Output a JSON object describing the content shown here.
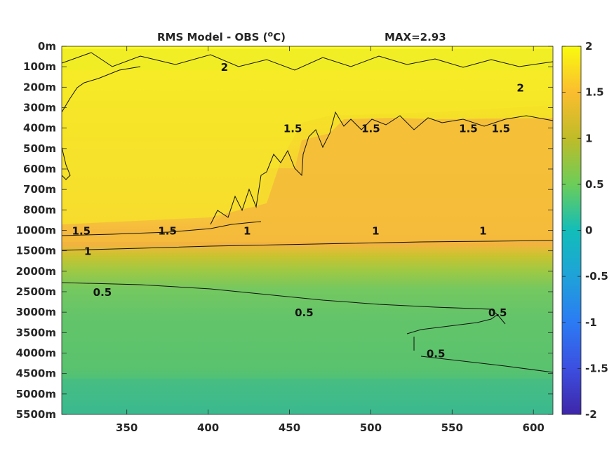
{
  "chart_data": {
    "type": "heatmap",
    "title": "RMS Model - OBS (°C)",
    "title_parts": {
      "left": "RMS Model - OBS (",
      "sup": "o",
      "right": "C)",
      "max_label": "MAX=2.93"
    },
    "colormap": "parula",
    "colorbar": {
      "range": [
        -2,
        2
      ],
      "ticks": [
        "2",
        "1.5",
        "1",
        "0.5",
        "0",
        "-0.5",
        "-1",
        "-1.5",
        "-2"
      ]
    },
    "x_axis": {
      "range": [
        310,
        612
      ],
      "ticks": [
        "350",
        "400",
        "450",
        "500",
        "550",
        "600"
      ],
      "tick_values": [
        350,
        400,
        450,
        500,
        550,
        600
      ]
    },
    "y_axis": {
      "scale": "depth levels (non-uniform)",
      "ticks": [
        "0m",
        "100m",
        "200m",
        "300m",
        "400m",
        "500m",
        "600m",
        "700m",
        "800m",
        "1000m",
        "1500m",
        "2000m",
        "2500m",
        "3000m",
        "3500m",
        "4000m",
        "4500m",
        "5000m",
        "5500m"
      ]
    },
    "field_summary": [
      {
        "depth_from": "0m",
        "depth_to": "300m",
        "approx_value": 2.0,
        "description": "yellow band"
      },
      {
        "depth_from": "300m",
        "depth_to": "1000m",
        "approx_value": 1.6,
        "description": "yellow-orange"
      },
      {
        "depth_from": "1000m",
        "depth_to": "1500m",
        "approx_value": 1.2,
        "description": "orange"
      },
      {
        "depth_from": "1500m",
        "depth_to": "3000m",
        "approx_value": 0.7,
        "description": "light green"
      },
      {
        "depth_from": "3000m",
        "depth_to": "5500m",
        "approx_value": 0.4,
        "description": "green to teal"
      }
    ],
    "contour_labels": [
      {
        "text": "1.5",
        "x": 322,
        "depth": "1000m"
      },
      {
        "text": "1.5",
        "x": 375,
        "depth": "1000m"
      },
      {
        "text": "1",
        "x": 326,
        "depth": "1500m"
      },
      {
        "text": "1",
        "x": 424,
        "depth": "1000m"
      },
      {
        "text": "1",
        "x": 503,
        "depth": "1000m"
      },
      {
        "text": "1",
        "x": 569,
        "depth": "1000m"
      },
      {
        "text": "0.5",
        "x": 335,
        "depth": "2500m"
      },
      {
        "text": "0.5",
        "x": 459,
        "depth": "3000m"
      },
      {
        "text": "0.5",
        "x": 540,
        "depth": "4000m"
      },
      {
        "text": "0.5",
        "x": 578,
        "depth": "3000m"
      },
      {
        "text": "2",
        "x": 410,
        "depth": "100m"
      },
      {
        "text": "2",
        "x": 592,
        "depth": "200m"
      },
      {
        "text": "1.5",
        "x": 452,
        "depth": "400m"
      },
      {
        "text": "1.5",
        "x": 500,
        "depth": "400m"
      },
      {
        "text": "1.5",
        "x": 560,
        "depth": "400m"
      },
      {
        "text": "1.5",
        "x": 580,
        "depth": "400m"
      }
    ]
  }
}
